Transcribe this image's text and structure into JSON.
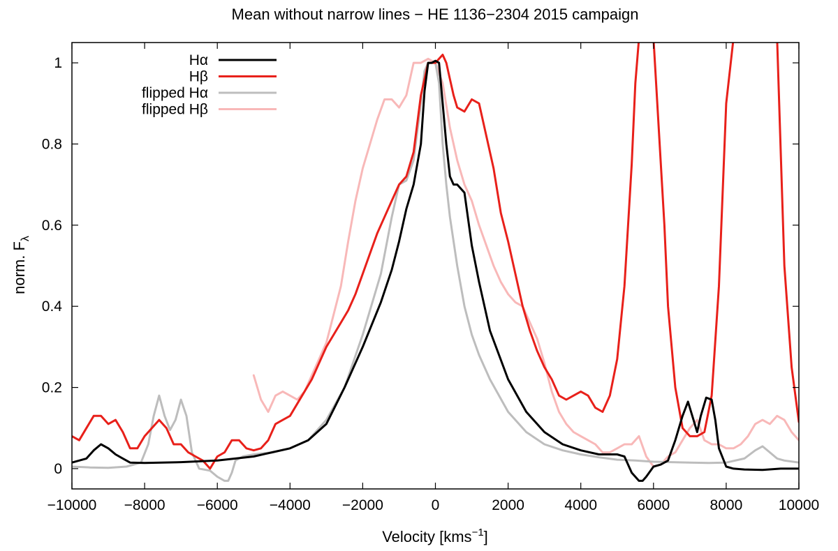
{
  "chart_data": {
    "type": "line",
    "title": "Mean without narrow lines − HE 1136−2304 2015 campaign",
    "xlabel": "Velocity [kms",
    "xlabel_sup": "−1",
    "xlabel_suffix": "]",
    "ylabel": "norm. F",
    "ylabel_sub": "λ",
    "xlim": [
      -10000,
      10000
    ],
    "ylim": [
      -0.05,
      1.05
    ],
    "xticks": [
      -10000,
      -8000,
      -6000,
      -4000,
      -2000,
      0,
      2000,
      4000,
      6000,
      8000,
      10000
    ],
    "xtick_labels": [
      "−10000",
      "−8000",
      "−6000",
      "−4000",
      "−2000",
      "0",
      "2000",
      "4000",
      "6000",
      "8000",
      "10000"
    ],
    "yticks": [
      0,
      0.2,
      0.4,
      0.6,
      0.8,
      1
    ],
    "ytick_labels": [
      "0",
      "0.2",
      "0.4",
      "0.6",
      "0.8",
      "1"
    ],
    "grid": false,
    "legend_position": "top-left",
    "series": [
      {
        "name": "Hα",
        "color": "#000000",
        "x": [
          -10000,
          -9600,
          -9400,
          -9200,
          -9000,
          -8800,
          -8600,
          -8400,
          -8000,
          -7000,
          -6000,
          -5000,
          -4500,
          -4000,
          -3500,
          -3000,
          -2500,
          -2000,
          -1500,
          -1200,
          -1000,
          -800,
          -600,
          -400,
          -300,
          -200,
          -100,
          0,
          100,
          200,
          300,
          400,
          500,
          600,
          800,
          1000,
          1200,
          1500,
          2000,
          2500,
          3000,
          3500,
          4000,
          4500,
          5000,
          5200,
          5400,
          5600,
          5700,
          5800,
          6000,
          6200,
          6400,
          6600,
          6800,
          6950,
          7100,
          7200,
          7300,
          7450,
          7600,
          7700,
          7800,
          8000,
          8200,
          8500,
          9000,
          9500,
          10000
        ],
        "y": [
          0.015,
          0.025,
          0.045,
          0.06,
          0.05,
          0.035,
          0.025,
          0.015,
          0.014,
          0.016,
          0.02,
          0.03,
          0.04,
          0.05,
          0.07,
          0.11,
          0.2,
          0.3,
          0.41,
          0.49,
          0.56,
          0.64,
          0.7,
          0.8,
          0.93,
          1.0,
          1.0,
          1.005,
          1.0,
          0.9,
          0.8,
          0.72,
          0.7,
          0.7,
          0.68,
          0.55,
          0.46,
          0.34,
          0.22,
          0.14,
          0.09,
          0.06,
          0.045,
          0.035,
          0.035,
          0.03,
          -0.01,
          -0.03,
          -0.03,
          -0.02,
          0.005,
          0.01,
          0.02,
          0.07,
          0.13,
          0.165,
          0.12,
          0.09,
          0.13,
          0.175,
          0.17,
          0.12,
          0.05,
          0.005,
          0.0,
          -0.002,
          -0.003,
          0.0,
          0.0
        ]
      },
      {
        "name": "Hβ",
        "color": "#e8201a",
        "x": [
          -10000,
          -9800,
          -9600,
          -9400,
          -9200,
          -9000,
          -8800,
          -8600,
          -8400,
          -8200,
          -8000,
          -7800,
          -7600,
          -7400,
          -7200,
          -7000,
          -6800,
          -6600,
          -6400,
          -6200,
          -6000,
          -5800,
          -5600,
          -5400,
          -5200,
          -5000,
          -4800,
          -4600,
          -4400,
          -4200,
          -4000,
          -3800,
          -3600,
          -3400,
          -3200,
          -3000,
          -2800,
          -2600,
          -2400,
          -2200,
          -2000,
          -1800,
          -1600,
          -1400,
          -1200,
          -1000,
          -800,
          -600,
          -400,
          -200,
          0,
          100,
          200,
          300,
          400,
          500,
          600,
          800,
          1000,
          1200,
          1400,
          1600,
          1800,
          2000,
          2200,
          2400,
          2600,
          2800,
          3000,
          3200,
          3400,
          3600,
          3800,
          4000,
          4200,
          4400,
          4600,
          4800,
          5000,
          5200,
          5400,
          5500,
          5600,
          6000,
          6300,
          6400,
          6600,
          6800,
          7000,
          7200,
          7400,
          7600,
          7800,
          8000,
          8200,
          9400,
          9600,
          9800,
          10000
        ],
        "y": [
          0.08,
          0.07,
          0.1,
          0.13,
          0.13,
          0.11,
          0.12,
          0.09,
          0.05,
          0.05,
          0.08,
          0.1,
          0.12,
          0.1,
          0.06,
          0.06,
          0.04,
          0.03,
          0.02,
          0.0,
          0.03,
          0.04,
          0.07,
          0.07,
          0.05,
          0.045,
          0.05,
          0.07,
          0.11,
          0.12,
          0.13,
          0.16,
          0.19,
          0.22,
          0.26,
          0.3,
          0.33,
          0.36,
          0.39,
          0.43,
          0.48,
          0.53,
          0.58,
          0.62,
          0.66,
          0.7,
          0.72,
          0.78,
          0.92,
          1.0,
          1.0,
          1.01,
          1.02,
          1.0,
          0.96,
          0.92,
          0.89,
          0.88,
          0.91,
          0.9,
          0.82,
          0.74,
          0.63,
          0.56,
          0.48,
          0.4,
          0.34,
          0.29,
          0.25,
          0.22,
          0.18,
          0.17,
          0.18,
          0.19,
          0.18,
          0.15,
          0.14,
          0.18,
          0.27,
          0.45,
          0.75,
          0.95,
          1.06,
          1.06,
          0.6,
          0.4,
          0.2,
          0.1,
          0.08,
          0.08,
          0.09,
          0.18,
          0.45,
          0.9,
          1.06,
          1.06,
          0.5,
          0.25,
          0.115
        ]
      },
      {
        "name": "flipped Hα",
        "color": "#bdbdbd",
        "x": [
          -10000,
          -9500,
          -9000,
          -8500,
          -8100,
          -7900,
          -7750,
          -7600,
          -7450,
          -7300,
          -7150,
          -7000,
          -6850,
          -6700,
          -6500,
          -6200,
          -6000,
          -5800,
          -5700,
          -5600,
          -5500,
          -5300,
          -5000,
          -4500,
          -4000,
          -3500,
          -3000,
          -2500,
          -2000,
          -1500,
          -1200,
          -1000,
          -800,
          -600,
          -400,
          -300,
          -200,
          -100,
          0,
          100,
          200,
          300,
          400,
          600,
          800,
          1000,
          1200,
          1500,
          2000,
          2500,
          3000,
          3500,
          4000,
          4500,
          5000,
          5500,
          6000,
          6500,
          7000,
          7500,
          8000,
          8500,
          8800,
          9000,
          9200,
          9400,
          9600,
          10000
        ],
        "y": [
          0.005,
          0.003,
          0.002,
          0.005,
          0.015,
          0.06,
          0.13,
          0.18,
          0.13,
          0.095,
          0.12,
          0.17,
          0.13,
          0.04,
          0.0,
          -0.005,
          -0.02,
          -0.03,
          -0.03,
          -0.01,
          0.02,
          0.03,
          0.035,
          0.04,
          0.05,
          0.07,
          0.12,
          0.2,
          0.33,
          0.48,
          0.62,
          0.7,
          0.71,
          0.76,
          0.9,
          0.98,
          1.0,
          1.0,
          1.0,
          0.95,
          0.8,
          0.7,
          0.62,
          0.5,
          0.4,
          0.33,
          0.28,
          0.22,
          0.14,
          0.09,
          0.06,
          0.045,
          0.035,
          0.028,
          0.022,
          0.02,
          0.017,
          0.016,
          0.015,
          0.014,
          0.015,
          0.025,
          0.045,
          0.055,
          0.04,
          0.025,
          0.02,
          0.015
        ]
      },
      {
        "name": "flipped Hβ",
        "color": "#f8b8b8",
        "x": [
          -5000,
          -4900,
          -4800,
          -4600,
          -4400,
          -4200,
          -4000,
          -3800,
          -3600,
          -3400,
          -3200,
          -3000,
          -2800,
          -2600,
          -2400,
          -2200,
          -2000,
          -1800,
          -1600,
          -1400,
          -1200,
          -1000,
          -800,
          -600,
          -400,
          -200,
          0,
          200,
          400,
          600,
          800,
          1000,
          1200,
          1400,
          1600,
          1800,
          2000,
          2200,
          2400,
          2600,
          2800,
          3000,
          3200,
          3400,
          3600,
          3800,
          4000,
          4200,
          4400,
          4600,
          4800,
          5000,
          5200,
          5400,
          5600,
          5800,
          6000,
          6200,
          6400,
          6600,
          6800,
          7000,
          7200,
          7400,
          7600,
          7800,
          8000,
          8200,
          8400,
          8600,
          8800,
          9000,
          9200,
          9400,
          9600,
          9800,
          10000
        ],
        "y": [
          0.23,
          0.2,
          0.17,
          0.14,
          0.18,
          0.19,
          0.18,
          0.17,
          0.19,
          0.23,
          0.27,
          0.31,
          0.38,
          0.45,
          0.56,
          0.66,
          0.74,
          0.8,
          0.86,
          0.91,
          0.91,
          0.89,
          0.92,
          1.0,
          1.0,
          1.01,
          1.0,
          0.95,
          0.84,
          0.76,
          0.7,
          0.66,
          0.6,
          0.55,
          0.5,
          0.46,
          0.43,
          0.41,
          0.4,
          0.36,
          0.32,
          0.26,
          0.19,
          0.14,
          0.11,
          0.09,
          0.08,
          0.07,
          0.06,
          0.04,
          0.04,
          0.05,
          0.06,
          0.06,
          0.08,
          0.03,
          0.005,
          0.01,
          0.03,
          0.04,
          0.07,
          0.1,
          0.12,
          0.07,
          0.06,
          0.06,
          0.05,
          0.05,
          0.06,
          0.08,
          0.11,
          0.12,
          0.11,
          0.13,
          0.12,
          0.09,
          0.07
        ]
      }
    ]
  }
}
